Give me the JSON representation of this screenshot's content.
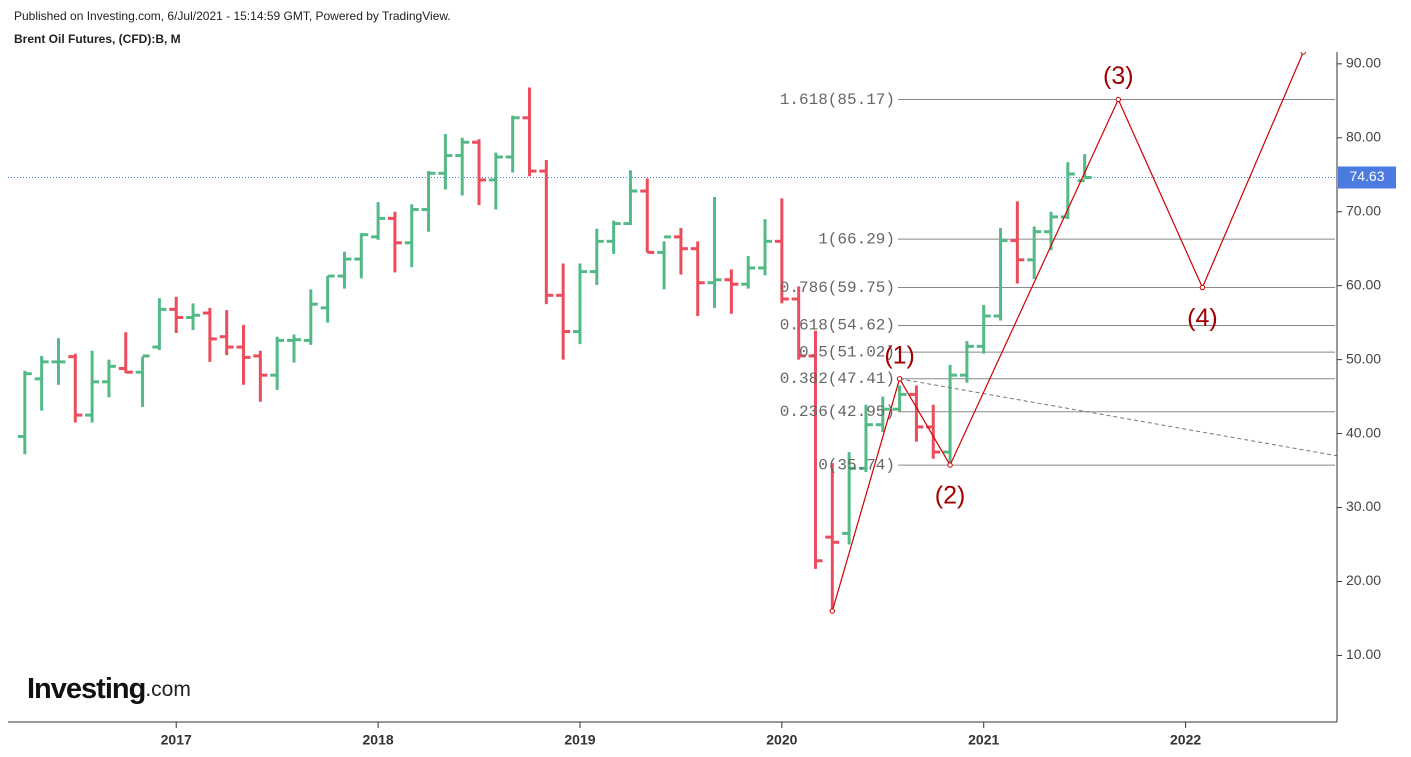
{
  "header": {
    "published": "Published on Investing.com, 6/Jul/2021 - 15:14:59 GMT, Powered by TradingView.",
    "instrument": "Brent Oil Futures, (CFD):B, M"
  },
  "logo": {
    "brand": "Investing",
    "suffix": ".com"
  },
  "chart_data": {
    "type": "ohlc",
    "up_color": "#53b987",
    "down_color": "#eb4d5c",
    "x": [
      "2016-04",
      "2016-05",
      "2016-06",
      "2016-07",
      "2016-08",
      "2016-09",
      "2016-10",
      "2016-11",
      "2016-12",
      "2017-01",
      "2017-02",
      "2017-03",
      "2017-04",
      "2017-05",
      "2017-06",
      "2017-07",
      "2017-08",
      "2017-09",
      "2017-10",
      "2017-11",
      "2017-12",
      "2018-01",
      "2018-02",
      "2018-03",
      "2018-04",
      "2018-05",
      "2018-06",
      "2018-07",
      "2018-08",
      "2018-09",
      "2018-10",
      "2018-11",
      "2018-12",
      "2019-01",
      "2019-02",
      "2019-03",
      "2019-04",
      "2019-05",
      "2019-06",
      "2019-07",
      "2019-08",
      "2019-09",
      "2019-10",
      "2019-11",
      "2019-12",
      "2020-01",
      "2020-02",
      "2020-03",
      "2020-04",
      "2020-05",
      "2020-06",
      "2020-07",
      "2020-08",
      "2020-09",
      "2020-10",
      "2020-11",
      "2020-12",
      "2021-01",
      "2021-02",
      "2021-03",
      "2021-04",
      "2021-05",
      "2021-06",
      "2021-07"
    ],
    "open": [
      39.6,
      47.4,
      49.7,
      50.4,
      42.5,
      47.0,
      48.8,
      48.3,
      51.7,
      56.8,
      55.7,
      56.3,
      53.1,
      51.7,
      50.5,
      47.9,
      52.6,
      52.6,
      57.0,
      61.3,
      63.6,
      66.6,
      69.1,
      65.8,
      70.3,
      75.2,
      77.6,
      79.4,
      74.3,
      77.4,
      82.7,
      75.5,
      58.7,
      53.8,
      61.9,
      66.0,
      68.4,
      72.8,
      64.5,
      66.6,
      65.0,
      60.4,
      60.8,
      60.2,
      62.4,
      66.0,
      58.2,
      50.5,
      26.0,
      26.5,
      35.3,
      41.2,
      43.3,
      45.3,
      40.9,
      37.5,
      47.9,
      51.8,
      55.9,
      66.1,
      63.5,
      67.3,
      69.3,
      74.2
    ],
    "high": [
      48.5,
      50.5,
      52.9,
      50.8,
      51.2,
      50.0,
      53.7,
      50.4,
      58.3,
      58.5,
      57.6,
      57.0,
      56.7,
      54.7,
      51.2,
      53.1,
      53.4,
      59.5,
      61.3,
      64.6,
      67.1,
      71.3,
      70.0,
      71.0,
      75.5,
      80.5,
      80.0,
      79.8,
      78.0,
      83.0,
      86.8,
      77.0,
      63.0,
      63.0,
      67.7,
      68.8,
      75.6,
      74.5,
      66.0,
      67.8,
      66.0,
      72.0,
      62.2,
      64.0,
      69.0,
      71.8,
      59.9,
      53.9,
      36.0,
      37.5,
      43.9,
      45.0,
      46.5,
      46.5,
      43.9,
      49.3,
      52.5,
      57.4,
      67.8,
      71.4,
      68.0,
      70.0,
      76.7,
      77.8
    ],
    "low": [
      37.2,
      43.1,
      46.6,
      41.5,
      41.5,
      44.9,
      48.2,
      43.6,
      51.3,
      53.6,
      54.0,
      49.7,
      50.6,
      46.6,
      44.3,
      45.9,
      49.6,
      52.0,
      55.0,
      59.6,
      61.0,
      66.2,
      61.8,
      62.5,
      67.3,
      73.0,
      72.2,
      70.9,
      70.3,
      75.3,
      74.8,
      57.5,
      50.0,
      52.1,
      60.1,
      64.3,
      68.2,
      64.5,
      59.5,
      61.5,
      55.9,
      57.0,
      56.2,
      59.6,
      61.4,
      57.6,
      50.0,
      21.7,
      16.0,
      25.0,
      34.8,
      40.2,
      43.0,
      38.9,
      36.6,
      35.7,
      46.9,
      50.8,
      55.3,
      60.3,
      60.9,
      64.8,
      69.0,
      74.5
    ],
    "close": [
      48.1,
      49.7,
      49.7,
      42.5,
      47.0,
      49.1,
      48.3,
      50.5,
      56.8,
      55.7,
      56.0,
      52.8,
      51.7,
      50.3,
      47.9,
      52.6,
      52.7,
      57.5,
      61.3,
      63.6,
      66.9,
      69.1,
      65.8,
      70.3,
      75.2,
      77.6,
      79.4,
      74.3,
      77.4,
      82.7,
      75.5,
      58.7,
      53.8,
      61.9,
      66.0,
      68.4,
      72.8,
      64.5,
      66.6,
      65.0,
      60.4,
      60.8,
      60.2,
      62.4,
      66.0,
      58.2,
      50.5,
      22.8,
      25.3,
      35.3,
      41.2,
      43.3,
      45.3,
      40.9,
      37.5,
      47.9,
      51.8,
      55.9,
      66.1,
      63.5,
      67.3,
      69.3,
      75.1,
      74.63
    ],
    "last_price": 74.63,
    "last_price_color": "#4b7be0",
    "xlim": [
      "2016-03",
      "2022-10"
    ],
    "ylim": [
      1,
      91.6
    ],
    "yticks": [
      {
        "value": 10,
        "label": "10.00"
      },
      {
        "value": 20,
        "label": "20.00"
      },
      {
        "value": 30,
        "label": "30.00"
      },
      {
        "value": 40,
        "label": "40.00"
      },
      {
        "value": 50,
        "label": "50.00"
      },
      {
        "value": 60,
        "label": "60.00"
      },
      {
        "value": 70,
        "label": "70.00"
      },
      {
        "value": 80,
        "label": "80.00"
      },
      {
        "value": 90,
        "label": "90.00"
      }
    ],
    "xticks": [
      {
        "value": "2017-01",
        "label": "2017"
      },
      {
        "value": "2018-01",
        "label": "2018"
      },
      {
        "value": "2019-01",
        "label": "2019"
      },
      {
        "value": "2020-01",
        "label": "2020"
      },
      {
        "value": "2021-01",
        "label": "2021"
      },
      {
        "value": "2022-01",
        "label": "2022"
      }
    ],
    "fib_levels": [
      {
        "label": "1.618(85.17)",
        "value": 85.17
      },
      {
        "label": "1(66.29)",
        "value": 66.29
      },
      {
        "label": "0.786(59.75)",
        "value": 59.75
      },
      {
        "label": "0.618(54.62)",
        "value": 54.62
      },
      {
        "label": "0.5(51.02)",
        "value": 51.02
      },
      {
        "label": "0.382(47.41)",
        "value": 47.41
      },
      {
        "label": "0.236(42.95)",
        "value": 42.95
      },
      {
        "label": "0(35.74)",
        "value": 35.74
      }
    ],
    "wave_path": {
      "x": [
        "2020-04",
        "2020-08",
        "2020-11",
        "2021-09",
        "2022-02",
        "2022-08"
      ],
      "values": [
        16.0,
        47.41,
        35.74,
        85.17,
        59.75,
        91.6
      ],
      "color": "#d00000"
    },
    "wave_labels": [
      {
        "label": "(1)",
        "x": "2020-08",
        "value": 47.41,
        "side": "above"
      },
      {
        "label": "(2)",
        "x": "2020-11",
        "value": 35.74,
        "side": "below"
      },
      {
        "label": "(3)",
        "x": "2021-09",
        "value": 85.17,
        "side": "above"
      },
      {
        "label": "(4)",
        "x": "2022-02",
        "value": 59.75,
        "side": "below"
      }
    ],
    "trend_line": {
      "x": [
        "2020-08",
        "2022-10"
      ],
      "values": [
        47.41,
        37.0
      ]
    }
  }
}
